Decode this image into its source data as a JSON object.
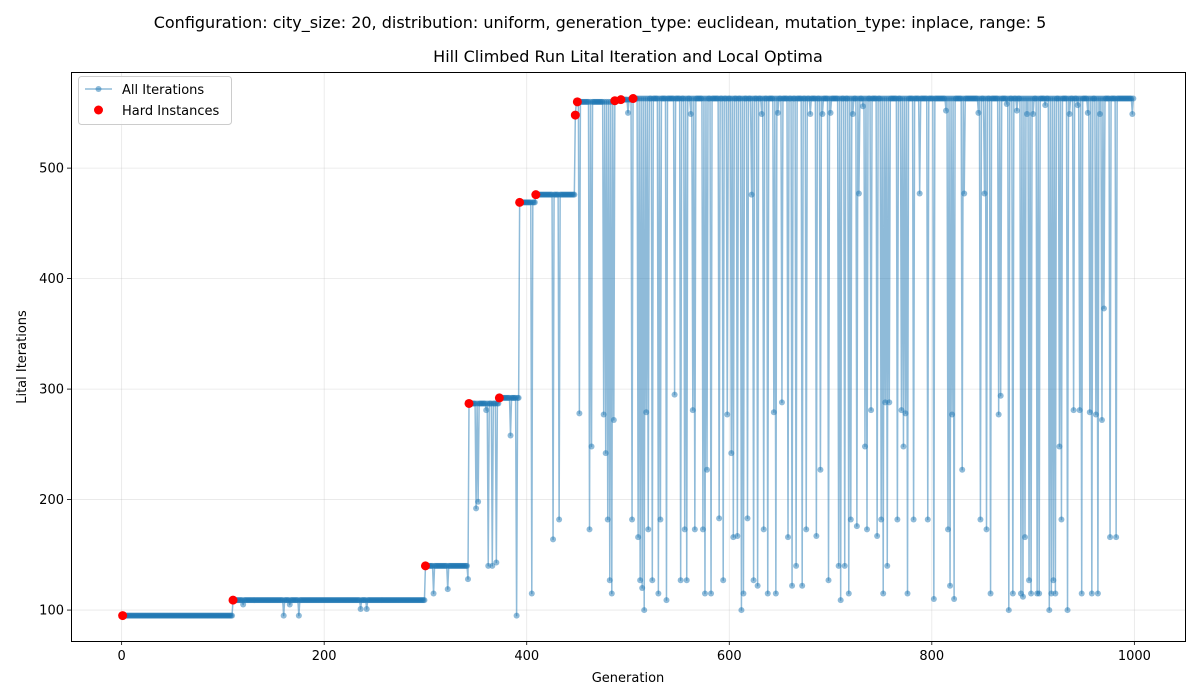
{
  "figure": {
    "suptitle": "Configuration: city_size: 20, distribution: uniform, generation_type: euclidean, mutation_type: inplace, range: 5"
  },
  "chart_data": {
    "type": "line",
    "title": "Hill Climbed Run Lital Iteration and Local Optima",
    "xlabel": "Generation",
    "ylabel": "Lital Iterations",
    "xlim": [
      -50,
      1050
    ],
    "ylim": [
      72,
      587
    ],
    "xticks": [
      0,
      200,
      400,
      600,
      800,
      1000
    ],
    "yticks": [
      100,
      200,
      300,
      400,
      500
    ],
    "grid": true,
    "legend": {
      "placement": "top-left",
      "entries": [
        "All Iterations",
        "Hard Instances"
      ]
    },
    "colors": {
      "all_iterations": "#1f77b4",
      "hard_instances": "#ff0000"
    },
    "plateaus": [
      {
        "x_start": 0,
        "x_end": 110,
        "y": 95
      },
      {
        "x_start": 110,
        "x_end": 300,
        "y": 109
      },
      {
        "x_start": 300,
        "x_end": 343,
        "y": 140
      },
      {
        "x_start": 343,
        "x_end": 373,
        "y": 287
      },
      {
        "x_start": 373,
        "x_end": 393,
        "y": 292
      },
      {
        "x_start": 393,
        "x_end": 409,
        "y": 469
      },
      {
        "x_start": 409,
        "x_end": 449,
        "y": 476
      },
      {
        "x_start": 449,
        "x_end": 487,
        "y": 560
      },
      {
        "x_start": 487,
        "x_end": 493,
        "y": 561
      },
      {
        "x_start": 493,
        "x_end": 505,
        "y": 562
      },
      {
        "x_start": 505,
        "x_end": 1000,
        "y": 563
      }
    ],
    "excursions": [
      [
        120,
        105
      ],
      [
        160,
        95
      ],
      [
        166,
        105
      ],
      [
        175,
        95
      ],
      [
        236,
        101
      ],
      [
        242,
        101
      ],
      [
        308,
        115
      ],
      [
        322,
        119
      ],
      [
        342,
        128
      ],
      [
        350,
        192
      ],
      [
        352,
        198
      ],
      [
        360,
        281
      ],
      [
        362,
        140
      ],
      [
        366,
        140
      ],
      [
        370,
        143
      ],
      [
        384,
        258
      ],
      [
        390,
        95
      ],
      [
        402,
        469
      ],
      [
        405,
        115
      ],
      [
        426,
        164
      ],
      [
        432,
        182
      ],
      [
        448,
        548
      ],
      [
        452,
        278
      ],
      [
        462,
        173
      ],
      [
        464,
        248
      ],
      [
        476,
        277
      ],
      [
        478,
        242
      ],
      [
        480,
        182
      ],
      [
        482,
        127
      ],
      [
        484,
        115
      ],
      [
        486,
        272
      ],
      [
        500,
        550
      ],
      [
        504,
        182
      ],
      [
        510,
        166
      ],
      [
        512,
        127
      ],
      [
        514,
        120
      ],
      [
        516,
        100
      ],
      [
        518,
        279
      ],
      [
        520,
        173
      ],
      [
        524,
        127
      ],
      [
        530,
        115
      ],
      [
        532,
        182
      ],
      [
        538,
        109
      ],
      [
        546,
        295
      ],
      [
        552,
        127
      ],
      [
        556,
        173
      ],
      [
        558,
        127
      ],
      [
        562,
        549
      ],
      [
        564,
        281
      ],
      [
        566,
        173
      ],
      [
        574,
        173
      ],
      [
        576,
        115
      ],
      [
        578,
        227
      ],
      [
        582,
        115
      ],
      [
        590,
        183
      ],
      [
        594,
        127
      ],
      [
        598,
        277
      ],
      [
        602,
        242
      ],
      [
        604,
        166
      ],
      [
        608,
        167
      ],
      [
        612,
        100
      ],
      [
        614,
        115
      ],
      [
        618,
        183
      ],
      [
        622,
        476
      ],
      [
        624,
        127
      ],
      [
        628,
        122
      ],
      [
        632,
        549
      ],
      [
        634,
        173
      ],
      [
        638,
        115
      ],
      [
        644,
        279
      ],
      [
        646,
        115
      ],
      [
        648,
        550
      ],
      [
        652,
        288
      ],
      [
        658,
        166
      ],
      [
        662,
        122
      ],
      [
        666,
        140
      ],
      [
        672,
        122
      ],
      [
        676,
        173
      ],
      [
        680,
        549
      ],
      [
        686,
        167
      ],
      [
        690,
        227
      ],
      [
        692,
        549
      ],
      [
        698,
        127
      ],
      [
        700,
        550
      ],
      [
        708,
        140
      ],
      [
        710,
        109
      ],
      [
        714,
        140
      ],
      [
        718,
        115
      ],
      [
        720,
        182
      ],
      [
        722,
        549
      ],
      [
        726,
        176
      ],
      [
        728,
        477
      ],
      [
        732,
        556
      ],
      [
        734,
        248
      ],
      [
        736,
        173
      ],
      [
        740,
        281
      ],
      [
        746,
        167
      ],
      [
        750,
        182
      ],
      [
        752,
        115
      ],
      [
        754,
        288
      ],
      [
        756,
        140
      ],
      [
        758,
        288
      ],
      [
        766,
        182
      ],
      [
        770,
        281
      ],
      [
        772,
        248
      ],
      [
        774,
        278
      ],
      [
        776,
        115
      ],
      [
        782,
        182
      ],
      [
        788,
        477
      ],
      [
        796,
        182
      ],
      [
        802,
        110
      ],
      [
        814,
        552
      ],
      [
        816,
        173
      ],
      [
        818,
        122
      ],
      [
        820,
        277
      ],
      [
        822,
        110
      ],
      [
        830,
        227
      ],
      [
        832,
        477
      ],
      [
        846,
        550
      ],
      [
        848,
        182
      ],
      [
        852,
        477
      ],
      [
        854,
        173
      ],
      [
        858,
        115
      ],
      [
        866,
        277
      ],
      [
        868,
        294
      ],
      [
        874,
        558
      ],
      [
        876,
        100
      ],
      [
        880,
        115
      ],
      [
        884,
        552
      ],
      [
        888,
        115
      ],
      [
        890,
        112
      ],
      [
        892,
        166
      ],
      [
        894,
        549
      ],
      [
        896,
        127
      ],
      [
        898,
        115
      ],
      [
        900,
        549
      ],
      [
        904,
        115
      ],
      [
        906,
        115
      ],
      [
        912,
        557
      ],
      [
        916,
        100
      ],
      [
        918,
        115
      ],
      [
        920,
        127
      ],
      [
        922,
        115
      ],
      [
        926,
        248
      ],
      [
        928,
        182
      ],
      [
        934,
        100
      ],
      [
        936,
        549
      ],
      [
        940,
        281
      ],
      [
        944,
        557
      ],
      [
        946,
        281
      ],
      [
        948,
        115
      ],
      [
        954,
        550
      ],
      [
        956,
        279
      ],
      [
        958,
        115
      ],
      [
        962,
        277
      ],
      [
        964,
        115
      ],
      [
        966,
        549
      ],
      [
        968,
        272
      ],
      [
        970,
        373
      ],
      [
        976,
        166
      ],
      [
        982,
        166
      ],
      [
        998,
        549
      ]
    ],
    "hard_instances": [
      [
        1,
        95
      ],
      [
        110,
        109
      ],
      [
        300,
        140
      ],
      [
        343,
        287
      ],
      [
        373,
        292
      ],
      [
        393,
        469
      ],
      [
        409,
        476
      ],
      [
        448,
        548
      ],
      [
        450,
        560
      ],
      [
        487,
        561
      ],
      [
        493,
        562
      ],
      [
        505,
        563
      ]
    ]
  }
}
